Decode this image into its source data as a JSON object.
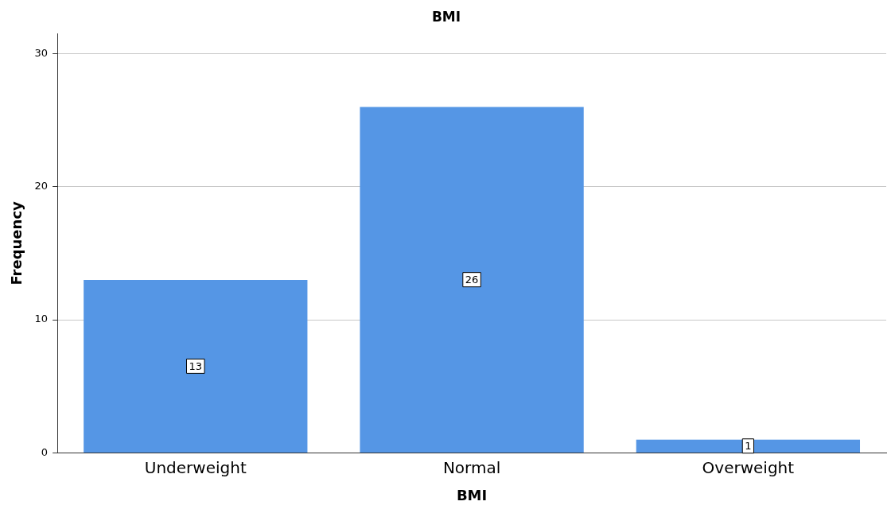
{
  "chart_data": {
    "type": "bar",
    "title": "BMI",
    "xlabel": "BMI",
    "ylabel": "Frequency",
    "categories": [
      "Underweight",
      "Normal",
      "Overweight"
    ],
    "values": [
      13,
      26,
      1
    ],
    "color": "#5596e5",
    "ylim": [
      0,
      31.5
    ],
    "yticks": [
      0,
      10,
      20,
      30
    ],
    "grid": "y",
    "data_labels": true
  }
}
